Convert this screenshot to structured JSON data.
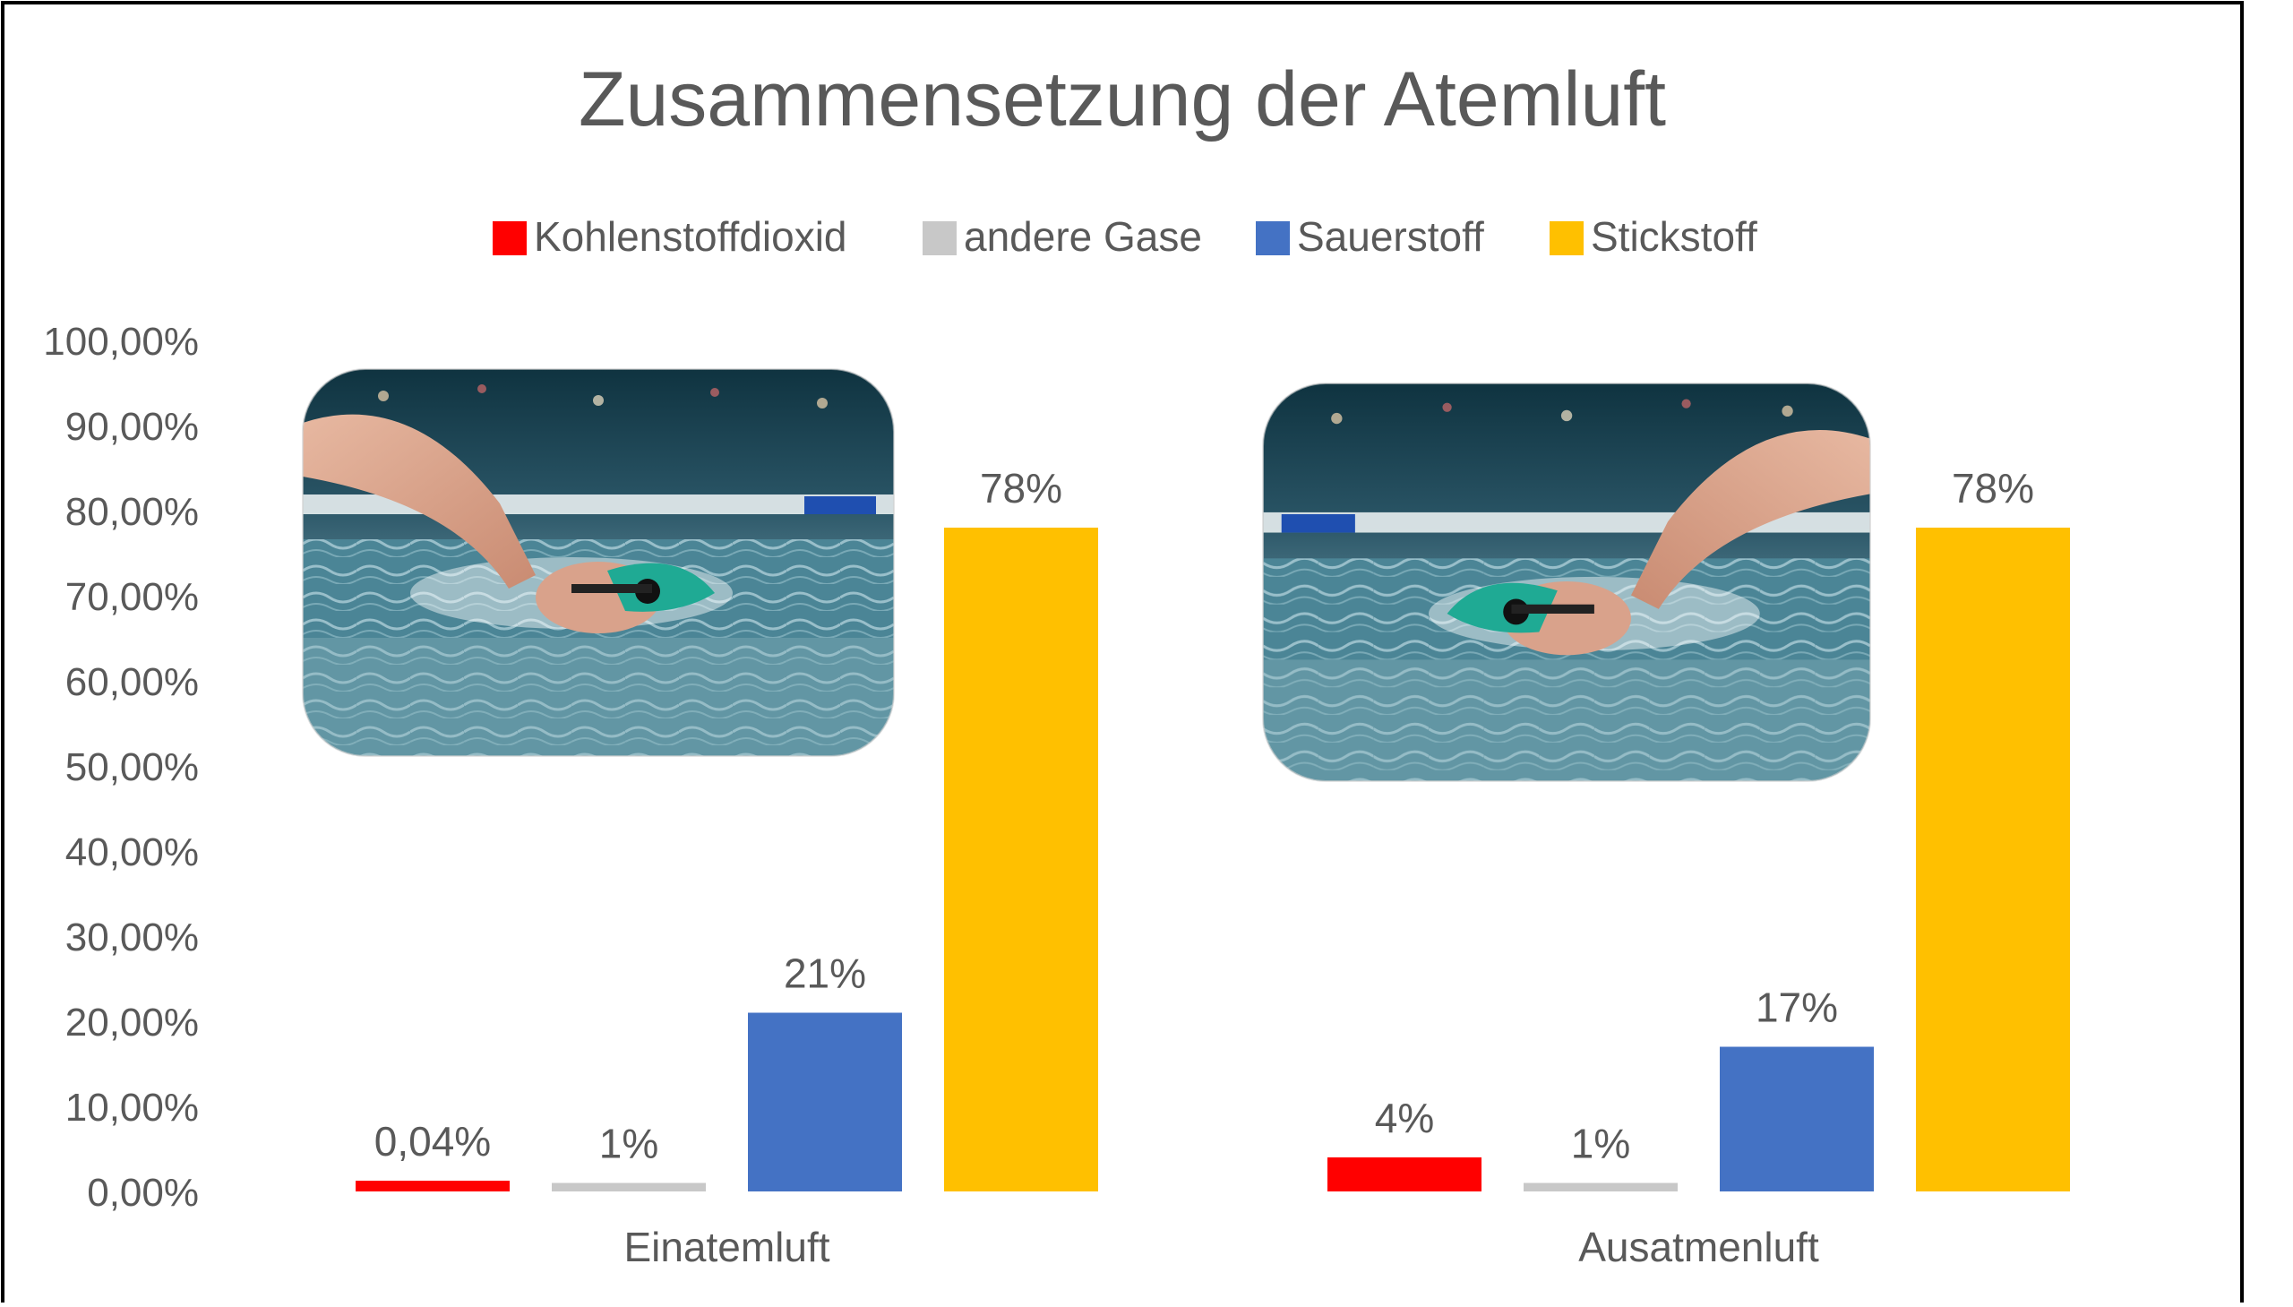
{
  "chart_data": {
    "type": "bar",
    "title": "Zusammensetzung der Atemluft",
    "categories": [
      "Einatemluft",
      "Ausatmenluft"
    ],
    "series": [
      {
        "name": "Kohlenstoffdioxid",
        "color": "#ff0000",
        "values": [
          0.04,
          4
        ],
        "labels": [
          "0,04%",
          "4%"
        ]
      },
      {
        "name": "andere Gase",
        "color": "#c8c8c8",
        "values": [
          1,
          1
        ],
        "labels": [
          "1%",
          "1%"
        ]
      },
      {
        "name": "Sauerstoff",
        "color": "#4472c4",
        "values": [
          21,
          17
        ],
        "labels": [
          "21%",
          "17%"
        ]
      },
      {
        "name": "Stickstoff",
        "color": "#ffc000",
        "values": [
          78,
          78
        ],
        "labels": [
          "78%",
          "78%"
        ]
      }
    ],
    "ylim": [
      0,
      100
    ],
    "yticks": [
      0,
      10,
      20,
      30,
      40,
      50,
      60,
      70,
      80,
      90,
      100
    ],
    "ytick_labels": [
      "0,00%",
      "10,00%",
      "20,00%",
      "30,00%",
      "40,00%",
      "50,00%",
      "60,00%",
      "70,00%",
      "80,00%",
      "90,00%",
      "100,00%"
    ],
    "legend_position": "top",
    "grid": false,
    "xlabel": "",
    "ylabel": ""
  },
  "photos": [
    {
      "category": "Einatemluft",
      "subject": "swimmer-freestyle"
    },
    {
      "category": "Ausatmenluft",
      "subject": "swimmer-freestyle-mirrored"
    }
  ],
  "colors": {
    "text": "#595959",
    "title": "#595959",
    "frame": "#000000"
  }
}
